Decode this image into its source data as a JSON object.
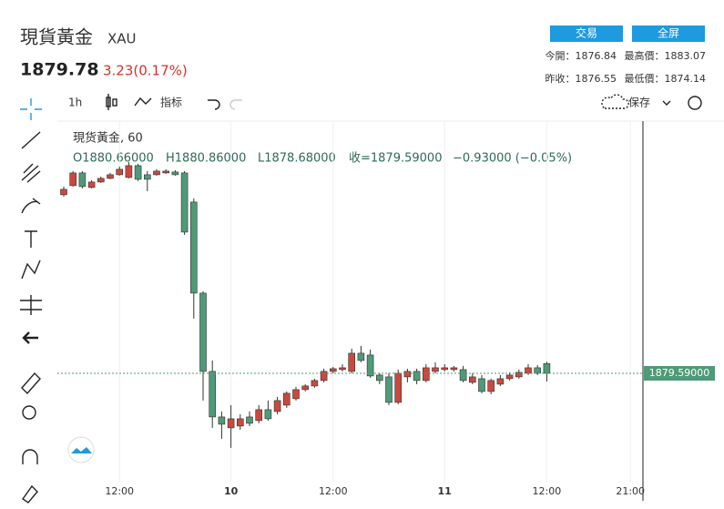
{
  "header": {
    "title": "現貨黃金",
    "symbol": "XAU",
    "price": "1879.78",
    "change": "3.23(0.17%)",
    "buttons": [
      "交易",
      "全屏"
    ],
    "stats": [
      [
        "今開：1876.84",
        "最高價：1883.07"
      ],
      [
        "昨收：1876.55",
        "最低價：1874.14"
      ]
    ]
  },
  "toolbar": {
    "interval": "1h",
    "indicators": "指标",
    "save": "保存"
  },
  "legend": {
    "name": "現货黃金, 60",
    "ohlc": [
      "O1880.66000",
      "H1880.86000",
      "L1878.68000",
      "收=1879.59000",
      "−0.93000 (−0.05%)"
    ]
  },
  "chart_data": {
    "type": "candlestick",
    "up_color": "#c9493e",
    "down_color": "#4f9a78",
    "ylim": [
      1866.09,
      1907.09
    ],
    "xticks": [
      {
        "value": 6,
        "label": "12:00"
      },
      {
        "value": 18,
        "label": "10"
      },
      {
        "value": 29,
        "label": "12:00"
      },
      {
        "value": 41,
        "label": "11"
      },
      {
        "value": 52,
        "label": "12:00"
      },
      {
        "value": 61,
        "label": "21:00"
      }
    ],
    "last_price_label": "1879.59000",
    "open": [
      1899.2,
      1900.2,
      1901.6,
      1900.0,
      1900.6,
      1901.0,
      1901.4,
      1901.1,
      1902.4,
      1901.4,
      1901.4,
      1901.6,
      1901.7,
      1901.6,
      1898.4,
      1888.4,
      1879.8,
      1874.8,
      1873.6,
      1873.8,
      1874.8,
      1874.4,
      1875.6,
      1875.4,
      1876.1,
      1876.8,
      1877.8,
      1878.2,
      1878.8,
      1879.8,
      1880.0,
      1879.8,
      1881.8,
      1881.6,
      1879.4,
      1879.2,
      1876.4,
      1879.2,
      1879.8,
      1878.8,
      1879.8,
      1880.0,
      1880.0,
      1880.0,
      1878.6,
      1879.0,
      1877.6,
      1878.4,
      1879.0,
      1879.2,
      1879.6,
      1880.2,
      1880.66
    ],
    "high": [
      1900.1,
      1901.8,
      1901.8,
      1900.8,
      1901.2,
      1901.6,
      1902.3,
      1902.8,
      1902.6,
      1901.8,
      1902.0,
      1902.0,
      1901.9,
      1901.8,
      1898.8,
      1888.6,
      1881.0,
      1875.4,
      1876.1,
      1875.1,
      1875.4,
      1876.1,
      1876.6,
      1877.0,
      1877.6,
      1878.1,
      1878.4,
      1879.0,
      1880.1,
      1880.3,
      1880.6,
      1882.3,
      1882.6,
      1882.2,
      1879.6,
      1879.6,
      1880.0,
      1880.1,
      1880.1,
      1880.6,
      1880.8,
      1880.6,
      1880.4,
      1880.4,
      1879.6,
      1879.4,
      1879.0,
      1879.4,
      1879.7,
      1880.0,
      1880.6,
      1880.5,
      1880.86
    ],
    "low": [
      1899.0,
      1900.1,
      1899.9,
      1899.9,
      1900.5,
      1900.9,
      1901.3,
      1901.0,
      1900.7,
      1899.6,
      1901.3,
      1901.5,
      1901.3,
      1894.8,
      1885.6,
      1876.6,
      1873.6,
      1872.4,
      1871.4,
      1873.4,
      1873.8,
      1874.1,
      1874.4,
      1875.1,
      1875.8,
      1876.6,
      1877.6,
      1878.0,
      1878.6,
      1879.6,
      1879.8,
      1879.6,
      1880.8,
      1879.1,
      1878.4,
      1876.1,
      1876.2,
      1878.6,
      1878.4,
      1878.6,
      1879.6,
      1879.8,
      1879.8,
      1878.6,
      1878.4,
      1877.4,
      1877.3,
      1878.2,
      1878.8,
      1879.0,
      1879.4,
      1879.4,
      1878.68
    ],
    "close": [
      1899.8,
      1901.6,
      1900.1,
      1900.6,
      1901.0,
      1901.4,
      1902.0,
      1902.4,
      1900.9,
      1900.9,
      1901.8,
      1901.8,
      1901.4,
      1895.1,
      1888.4,
      1879.8,
      1874.8,
      1874.0,
      1874.6,
      1874.6,
      1874.1,
      1875.6,
      1874.6,
      1876.6,
      1877.4,
      1877.8,
      1878.2,
      1878.8,
      1879.8,
      1880.1,
      1880.2,
      1881.8,
      1881.0,
      1879.3,
      1878.8,
      1876.4,
      1879.6,
      1879.8,
      1878.8,
      1880.2,
      1880.2,
      1880.2,
      1880.2,
      1878.8,
      1879.2,
      1877.6,
      1878.8,
      1879.0,
      1879.4,
      1879.7,
      1880.2,
      1879.6,
      1879.59
    ]
  }
}
